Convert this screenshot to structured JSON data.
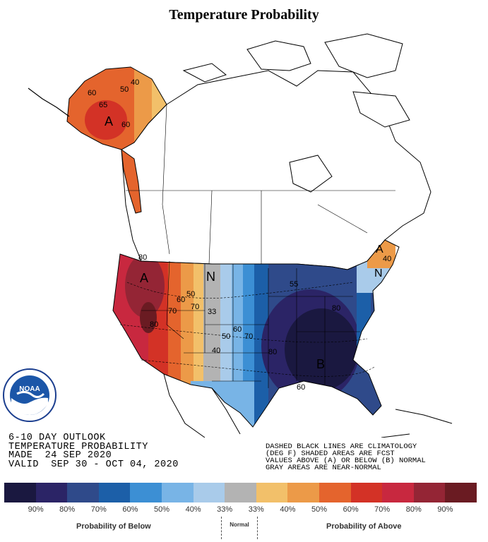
{
  "title": "Temperature Probability",
  "outlook": {
    "line1": "6-10 DAY OUTLOOK",
    "line2": "TEMPERATURE PROBABILITY",
    "line3": "MADE  24 SEP 2020",
    "line4": "VALID  SEP 30 - OCT 04, 2020"
  },
  "notes": {
    "line1": "DASHED BLACK LINES ARE CLIMATOLOGY",
    "line2": "(DEG F) SHADED AREAS ARE FCST",
    "line3": "VALUES ABOVE (A) OR BELOW (B) NORMAL",
    "line4": "GRAY AREAS ARE NEAR-NORMAL"
  },
  "map_labels": {
    "alaska": [
      "60",
      "50",
      "40",
      "65",
      "60",
      "A"
    ],
    "west": [
      "80",
      "A",
      "70",
      "80",
      "50",
      "60",
      "70",
      "N"
    ],
    "central": [
      "33",
      "50",
      "40",
      "60",
      "70",
      "80",
      "55",
      "80",
      "B",
      "60"
    ],
    "east": [
      "A",
      "N",
      "40"
    ]
  },
  "legend": {
    "colors": [
      "#1a1840",
      "#2b2466",
      "#2f4a8a",
      "#1c5fa8",
      "#3c8fd4",
      "#78b4e6",
      "#a9cbea",
      "#b3b3b3",
      "#f2c06a",
      "#ec9a48",
      "#e4642d",
      "#d33226",
      "#c8283f",
      "#942535",
      "#6a1b22"
    ],
    "ticks": [
      "90%",
      "80%",
      "70%",
      "60%",
      "50%",
      "40%",
      "33%",
      "33%",
      "40%",
      "50%",
      "60%",
      "70%",
      "80%",
      "90%"
    ],
    "below_label": "Probability of Below",
    "normal_label": "Normal",
    "above_label": "Probability of Above"
  }
}
